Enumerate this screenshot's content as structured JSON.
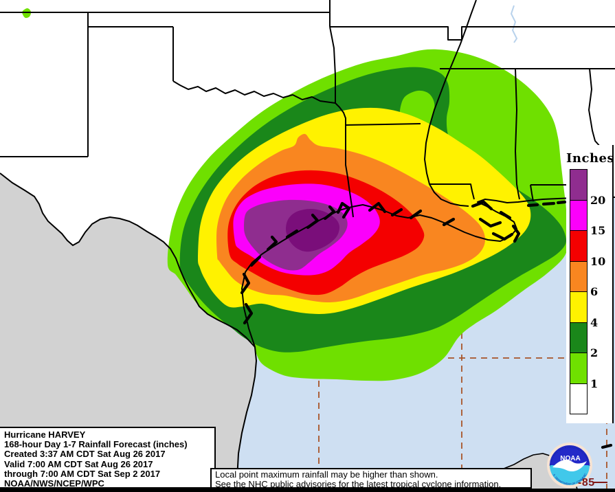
{
  "info_box": {
    "lines": [
      "Hurricane HARVEY",
      "168-hour Day 1-7 Rainfall Forecast (inches)",
      "Created 3:37 AM CDT Sat Aug 26 2017",
      "Valid 7:00 AM CDT Sat Aug 26 2017",
      "through 7:00 AM CDT Sat Sep 2 2017",
      "NOAA/NWS/NCEP/WPC"
    ]
  },
  "note_box": {
    "lines": [
      "Local point maximum rainfall may be higher than shown.",
      "See the NHC public advisories for the latest tropical cyclone information."
    ]
  },
  "legend": {
    "title": "Inches",
    "items": [
      {
        "name": "purple",
        "color": "#8F2D8F",
        "label": "20"
      },
      {
        "name": "magenta",
        "color": "#FB00FB",
        "label": "15"
      },
      {
        "name": "red",
        "color": "#F40000",
        "label": "10"
      },
      {
        "name": "orange",
        "color": "#F98620",
        "label": "6"
      },
      {
        "name": "yellow",
        "color": "#FFF200",
        "label": "4"
      },
      {
        "name": "dark-green",
        "color": "#1A871A",
        "label": "2"
      },
      {
        "name": "light-green",
        "color": "#6FE000",
        "label": "1"
      },
      {
        "name": "white",
        "color": "#FFFFFF",
        "label": ""
      }
    ]
  },
  "gridlines": {
    "lon_label": "-85",
    "color": "#A85428",
    "label_color": "#801818"
  },
  "logo": {
    "text": "NOAA",
    "ring_text_top": "NATIONAL OCEANIC AND ATMOSPHERIC ADMINISTRATION",
    "ring_text_bottom": "U.S. DEPARTMENT OF COMMERCE"
  },
  "palette": {
    "water": "#CEDFF2",
    "land": "#FFFFFF",
    "foreign_land": "#D2D2D2",
    "coast": "#000000",
    "state_border": "#000000",
    "river_blue": "#B8D2EC",
    "extreme_core": "#7A0E7A",
    "logo_ring": "#F6E3D3",
    "logo_blue": "#2329C8",
    "logo_cyan": "#41C8EA"
  },
  "map_data": {
    "type": "rainfall-contour-map",
    "units": "inches",
    "thresholds": [
      1,
      2,
      4,
      6,
      10,
      15,
      20
    ],
    "max_bin_label": "20"
  }
}
